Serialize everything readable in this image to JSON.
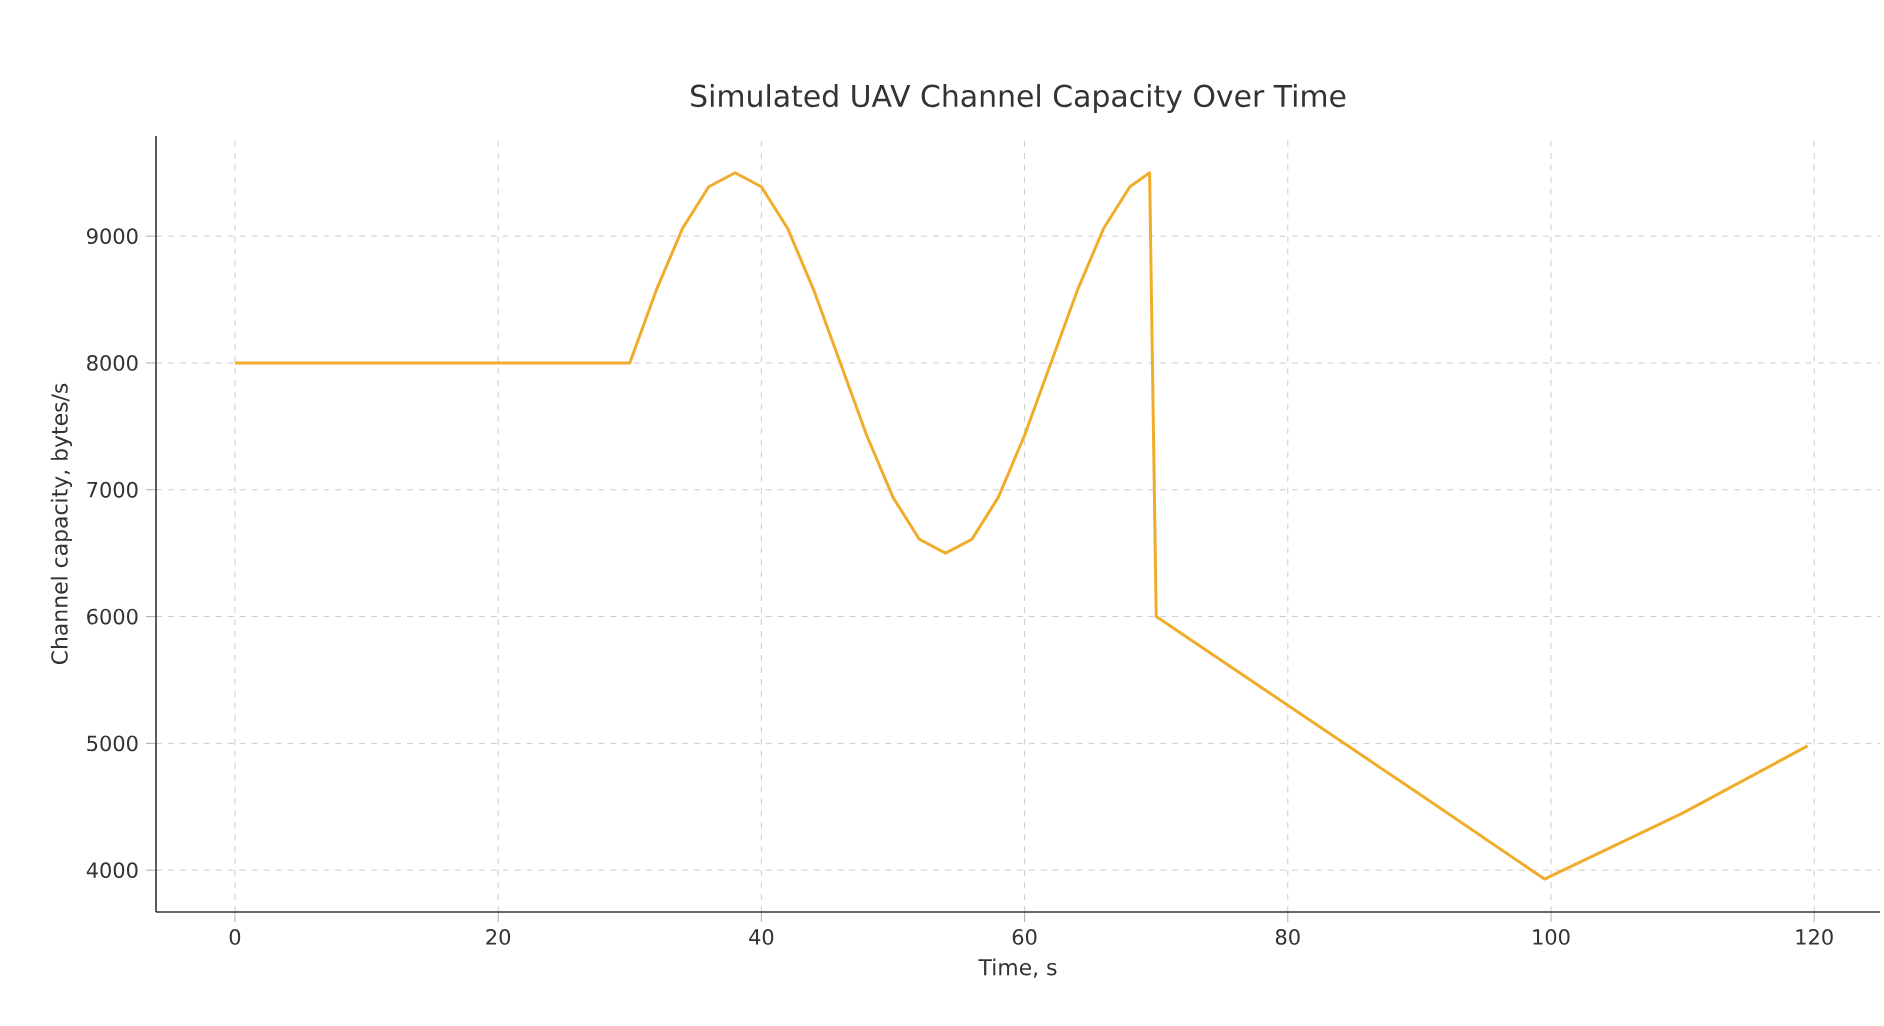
{
  "chart_data": {
    "type": "line",
    "title": "Simulated UAV Channel Capacity Over Time",
    "xlabel": "Time, s",
    "ylabel": "Channel capacity, bytes/s",
    "series": [
      {
        "color": "#f0ad2c",
        "x": [
          0,
          10,
          20,
          30,
          32,
          34,
          36,
          38,
          40,
          42,
          44,
          46,
          48,
          50,
          52,
          54,
          56,
          58,
          60,
          62,
          64,
          66,
          68,
          69.5,
          70,
          80,
          90,
          99.5,
          110,
          119.5
        ],
        "values": [
          8000,
          8000,
          8000,
          8000,
          8570,
          9060,
          9390,
          9500,
          9390,
          9060,
          8570,
          8000,
          7430,
          6940,
          6610,
          6500,
          6610,
          6940,
          7430,
          8000,
          8570,
          9060,
          9390,
          9500,
          6000,
          5300,
          4600,
          3930,
          4450,
          4980
        ]
      }
    ],
    "xlim": [
      -6,
      125
    ],
    "ylim": [
      3670,
      9790
    ],
    "xticks": [
      0,
      20,
      40,
      60,
      80,
      100,
      120
    ],
    "yticks": [
      4000,
      5000,
      6000,
      7000,
      8000,
      9000
    ],
    "grid": true
  }
}
